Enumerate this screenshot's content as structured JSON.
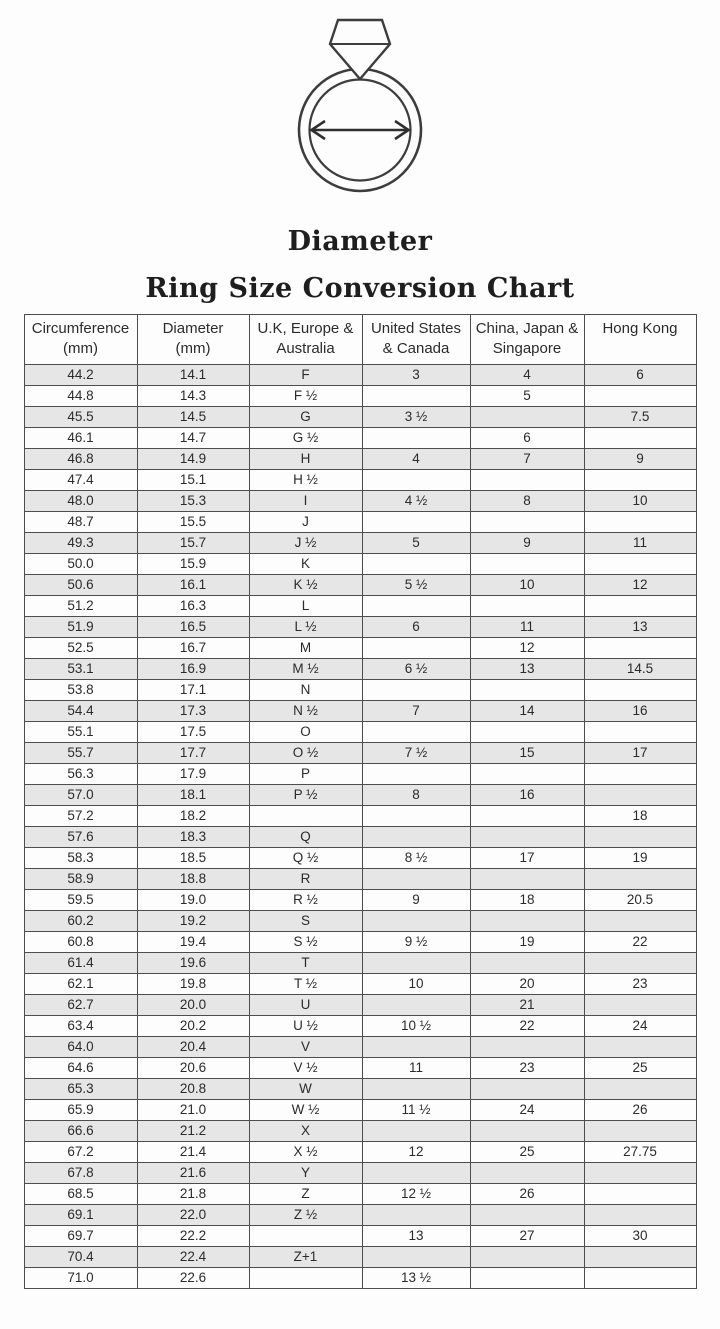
{
  "illustration": {
    "caption": "Diameter"
  },
  "title": "Ring Size Conversion Chart",
  "chart_data": {
    "type": "table",
    "title": "Ring Size Conversion Chart",
    "columns": [
      [
        "Circumference",
        "(mm)"
      ],
      [
        "Diameter",
        "(mm)"
      ],
      [
        "U.K, Europe &",
        "Australia"
      ],
      [
        "United States",
        "& Canada"
      ],
      [
        "China, Japan &",
        "Singapore"
      ],
      [
        "Hong Kong"
      ]
    ],
    "rows": [
      [
        "44.2",
        "14.1",
        "F",
        "3",
        "4",
        "6"
      ],
      [
        "44.8",
        "14.3",
        "F ½",
        "",
        "5",
        ""
      ],
      [
        "45.5",
        "14.5",
        "G",
        "3 ½",
        "",
        "7.5"
      ],
      [
        "46.1",
        "14.7",
        "G ½",
        "",
        "6",
        ""
      ],
      [
        "46.8",
        "14.9",
        "H",
        "4",
        "7",
        "9"
      ],
      [
        "47.4",
        "15.1",
        "H ½",
        "",
        "",
        ""
      ],
      [
        "48.0",
        "15.3",
        "I",
        "4 ½",
        "8",
        "10"
      ],
      [
        "48.7",
        "15.5",
        "J",
        "",
        "",
        ""
      ],
      [
        "49.3",
        "15.7",
        "J ½",
        "5",
        "9",
        "11"
      ],
      [
        "50.0",
        "15.9",
        "K",
        "",
        "",
        ""
      ],
      [
        "50.6",
        "16.1",
        "K ½",
        "5 ½",
        "10",
        "12"
      ],
      [
        "51.2",
        "16.3",
        "L",
        "",
        "",
        ""
      ],
      [
        "51.9",
        "16.5",
        "L ½",
        "6",
        "11",
        "13"
      ],
      [
        "52.5",
        "16.7",
        "M",
        "",
        "12",
        ""
      ],
      [
        "53.1",
        "16.9",
        "M ½",
        "6 ½",
        "13",
        "14.5"
      ],
      [
        "53.8",
        "17.1",
        "N",
        "",
        "",
        ""
      ],
      [
        "54.4",
        "17.3",
        "N ½",
        "7",
        "14",
        "16"
      ],
      [
        "55.1",
        "17.5",
        "O",
        "",
        "",
        ""
      ],
      [
        "55.7",
        "17.7",
        "O ½",
        "7 ½",
        "15",
        "17"
      ],
      [
        "56.3",
        "17.9",
        "P",
        "",
        "",
        ""
      ],
      [
        "57.0",
        "18.1",
        "P ½",
        "8",
        "16",
        ""
      ],
      [
        "57.2",
        "18.2",
        "",
        "",
        "",
        "18"
      ],
      [
        "57.6",
        "18.3",
        "Q",
        "",
        "",
        ""
      ],
      [
        "58.3",
        "18.5",
        "Q ½",
        "8 ½",
        "17",
        "19"
      ],
      [
        "58.9",
        "18.8",
        "R",
        "",
        "",
        ""
      ],
      [
        "59.5",
        "19.0",
        "R ½",
        "9",
        "18",
        "20.5"
      ],
      [
        "60.2",
        "19.2",
        "S",
        "",
        "",
        ""
      ],
      [
        "60.8",
        "19.4",
        "S ½",
        "9 ½",
        "19",
        "22"
      ],
      [
        "61.4",
        "19.6",
        "T",
        "",
        "",
        ""
      ],
      [
        "62.1",
        "19.8",
        "T ½",
        "10",
        "20",
        "23"
      ],
      [
        "62.7",
        "20.0",
        "U",
        "",
        "21",
        ""
      ],
      [
        "63.4",
        "20.2",
        "U ½",
        "10 ½",
        "22",
        "24"
      ],
      [
        "64.0",
        "20.4",
        "V",
        "",
        "",
        ""
      ],
      [
        "64.6",
        "20.6",
        "V ½",
        "11",
        "23",
        "25"
      ],
      [
        "65.3",
        "20.8",
        "W",
        "",
        "",
        ""
      ],
      [
        "65.9",
        "21.0",
        "W ½",
        "11 ½",
        "24",
        "26"
      ],
      [
        "66.6",
        "21.2",
        "X",
        "",
        "",
        ""
      ],
      [
        "67.2",
        "21.4",
        "X ½",
        "12",
        "25",
        "27.75"
      ],
      [
        "67.8",
        "21.6",
        "Y",
        "",
        "",
        ""
      ],
      [
        "68.5",
        "21.8",
        "Z",
        "12 ½",
        "26",
        ""
      ],
      [
        "69.1",
        "22.0",
        "Z ½",
        "",
        "",
        ""
      ],
      [
        "69.7",
        "22.2",
        "",
        "13",
        "27",
        "30"
      ],
      [
        "70.4",
        "22.4",
        "Z+1",
        "",
        "",
        ""
      ],
      [
        "71.0",
        "22.6",
        "",
        "13 ½",
        "",
        ""
      ]
    ],
    "layout_hints": {
      "row_shading": "alternating, first row shaded",
      "shade_color": "#e6e6e6",
      "border_color": "#4d4d4d"
    }
  },
  "colors": {
    "row_shade": "#e6e6e6",
    "border": "#4d4d4d",
    "text": "#2b2b2b",
    "background": "#fdfdfd",
    "line_art": "#3d3d3d"
  }
}
